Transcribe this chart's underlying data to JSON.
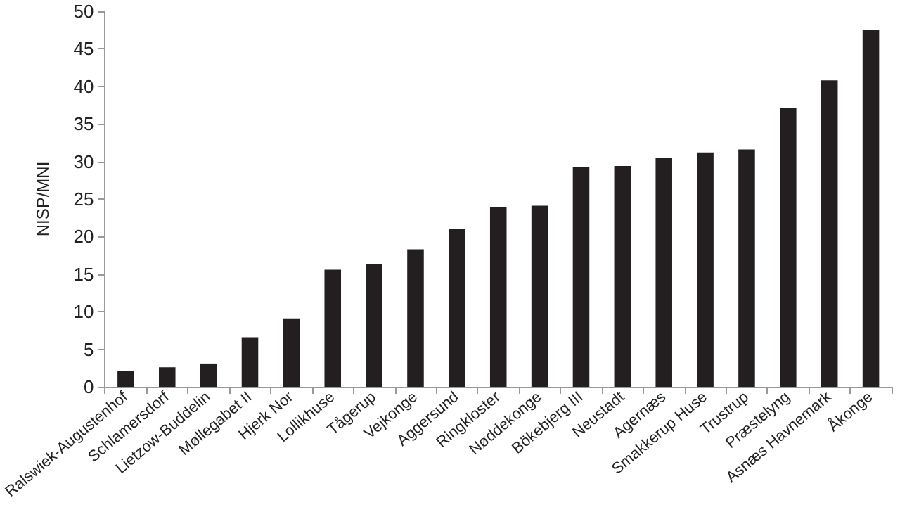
{
  "chart_data": {
    "type": "bar",
    "ylabel": "NISP/MNI",
    "categories": [
      "Ralswiek-Augustenhof",
      "Schlamersdorf",
      "Lietzow-Buddelin",
      "Møllegabet II",
      "Hjerk Nor",
      "Lollikhuse",
      "Tågerup",
      "Vejkonge",
      "Aggersund",
      "Ringkloster",
      "Nøddekonge",
      "Bökebjerg III",
      "Neustadt",
      "Agernæs",
      "Smakkerup Huse",
      "Trustrup",
      "Præstelyng",
      "Asnæs Havnemark",
      "Åkonge"
    ],
    "values": [
      2.1,
      2.6,
      3.1,
      6.6,
      9.1,
      15.6,
      16.3,
      18.3,
      21.0,
      23.9,
      24.1,
      29.3,
      29.4,
      30.5,
      31.2,
      31.6,
      37.1,
      40.8,
      47.5
    ],
    "color": "#231f20",
    "ylim": [
      0,
      50
    ],
    "yticks": [
      0,
      5,
      10,
      15,
      20,
      25,
      30,
      35,
      40,
      45,
      50
    ],
    "grid": false
  }
}
